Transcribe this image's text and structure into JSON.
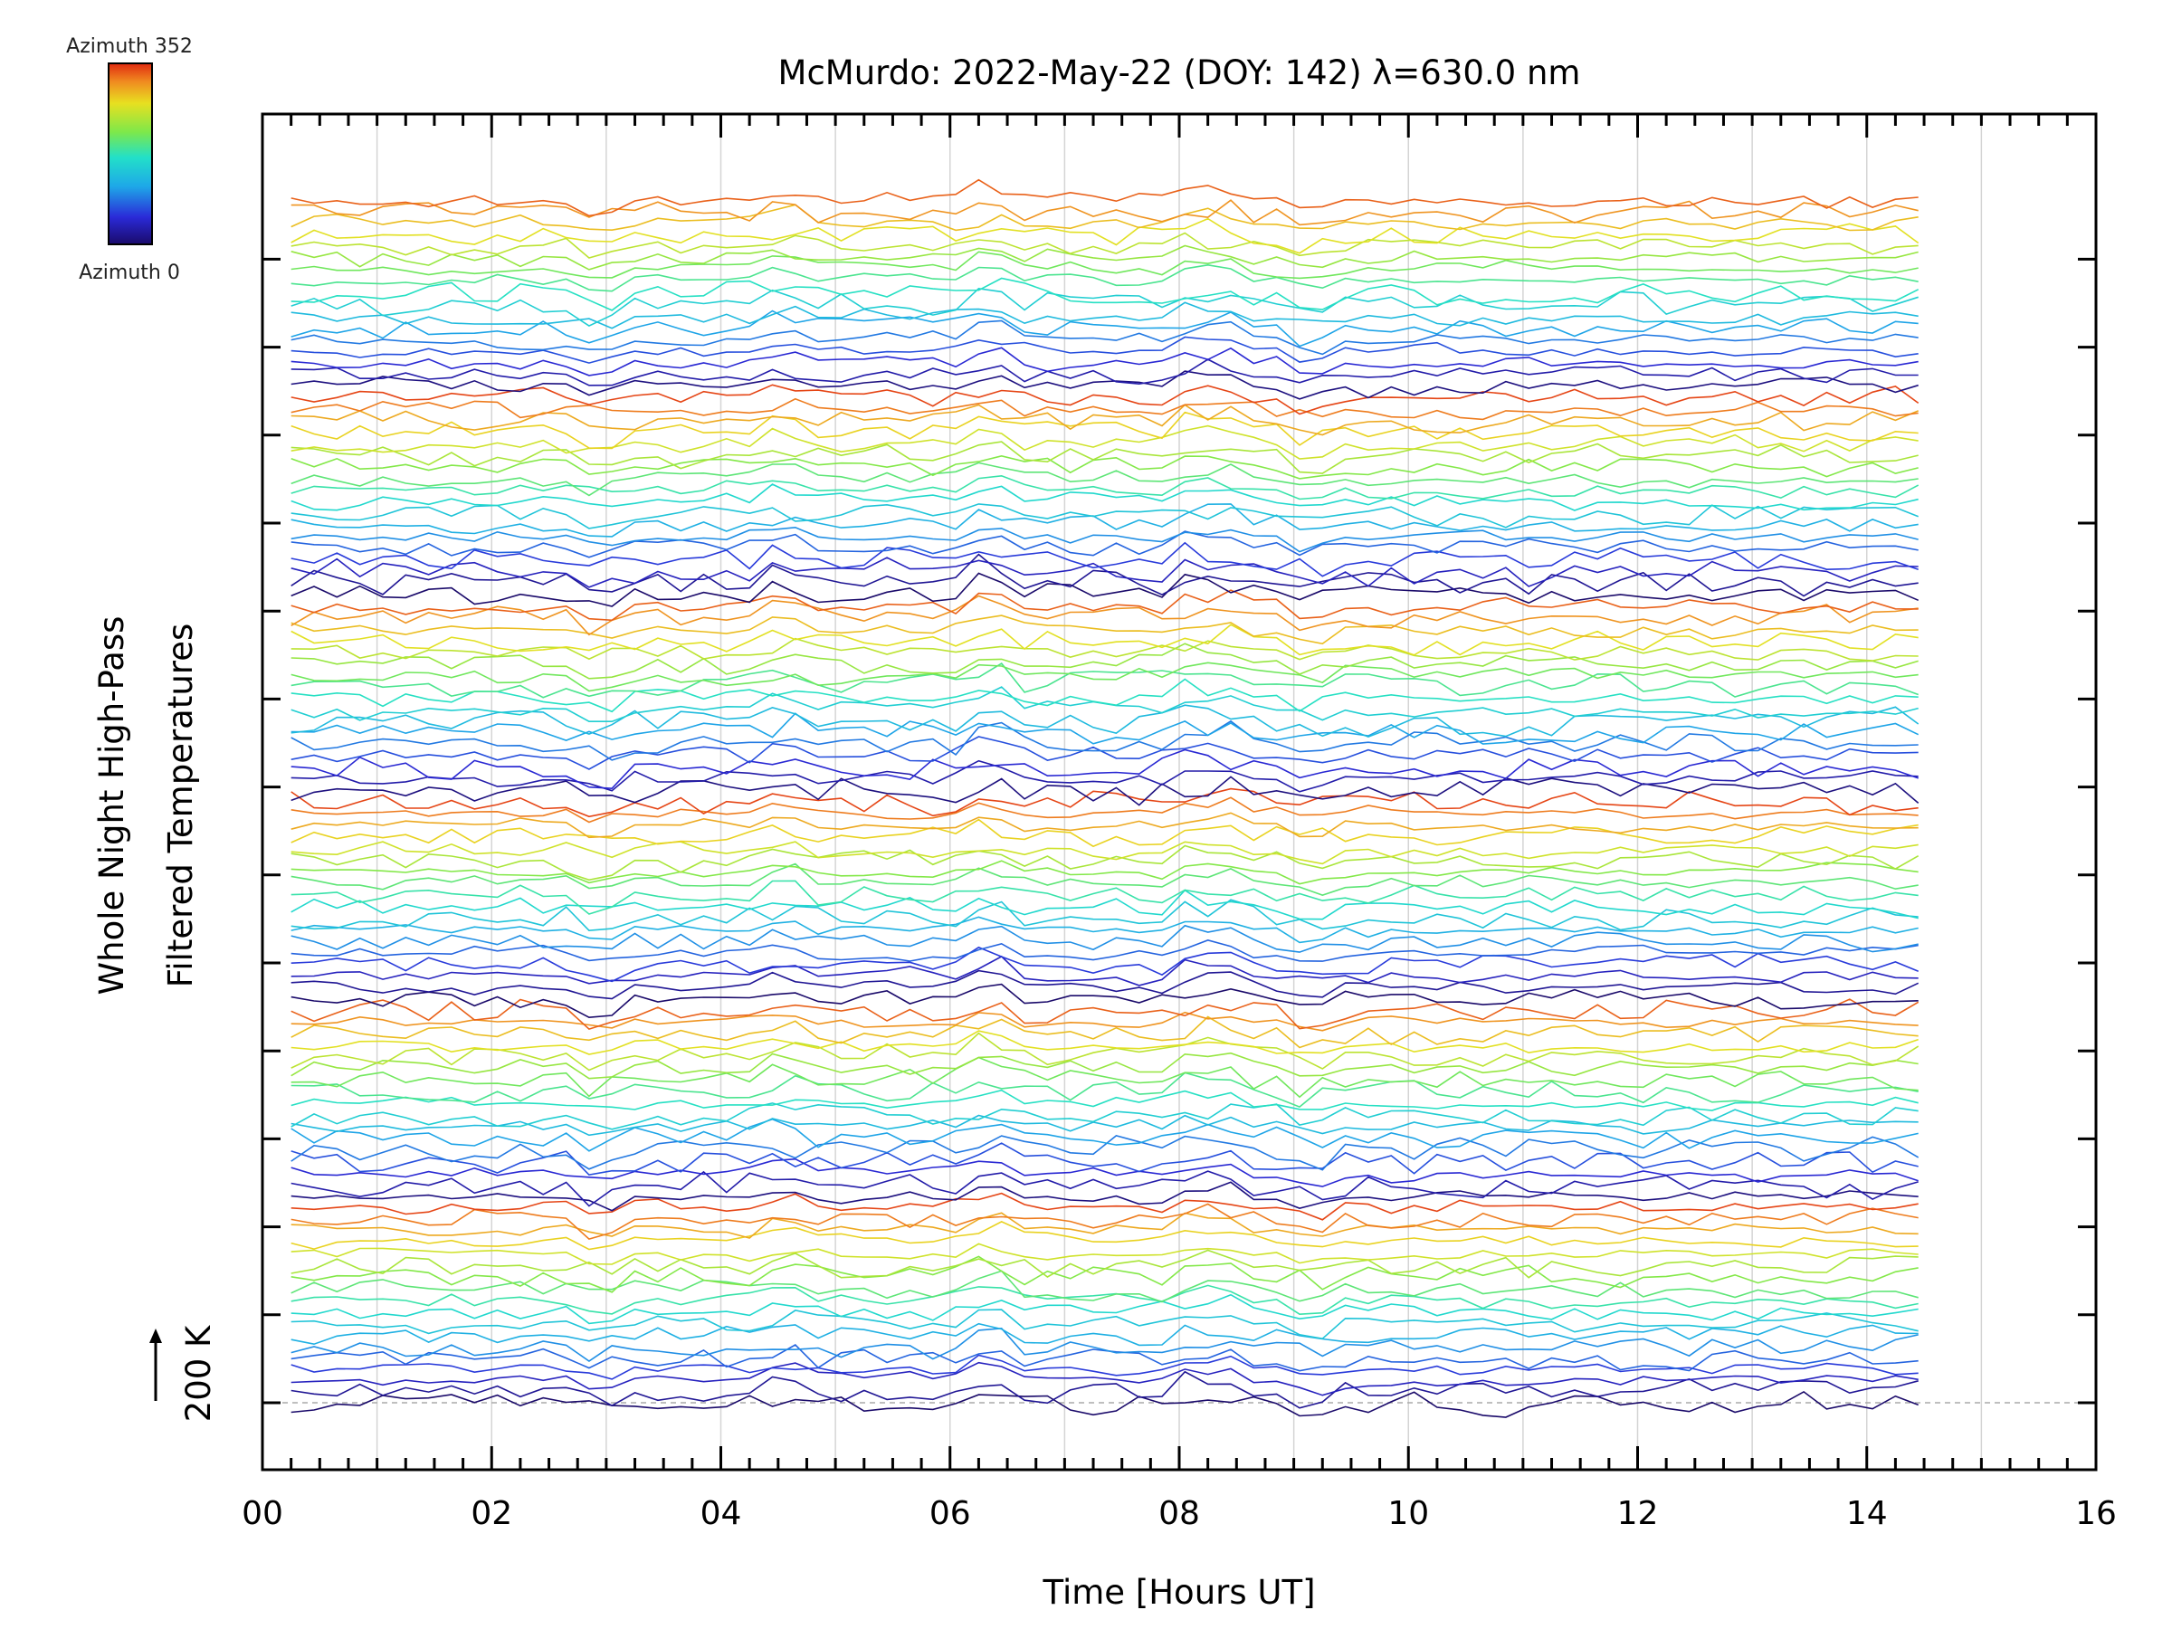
{
  "chart_data": {
    "type": "line",
    "title": "McMurdo: 2022-May-22 (DOY: 142) λ=630.0 nm",
    "xlabel": "Time [Hours UT]",
    "ylabel_line1": "Whole Night High-Pass",
    "ylabel_line2": "Filtered Temperatures",
    "scale_label": "200 K",
    "xlim": [
      0,
      16
    ],
    "x_ticks": [
      "00",
      "02",
      "04",
      "06",
      "08",
      "10",
      "12",
      "14",
      "16"
    ],
    "x_tick_values": [
      0,
      2,
      4,
      6,
      8,
      10,
      12,
      14,
      16
    ],
    "grid": "vertical lines every 1 hour",
    "data_start_hour": 0.25,
    "data_end_hour": 14.5,
    "n_traces": 105,
    "azimuth_cycles": 6,
    "colorbar": {
      "top_label": "Azimuth 352",
      "bottom_label": "Azimuth 0",
      "min_azimuth": 0,
      "max_azimuth": 352,
      "colormap": "jet-like (dark blue → cyan → green → yellow → red)"
    }
  }
}
